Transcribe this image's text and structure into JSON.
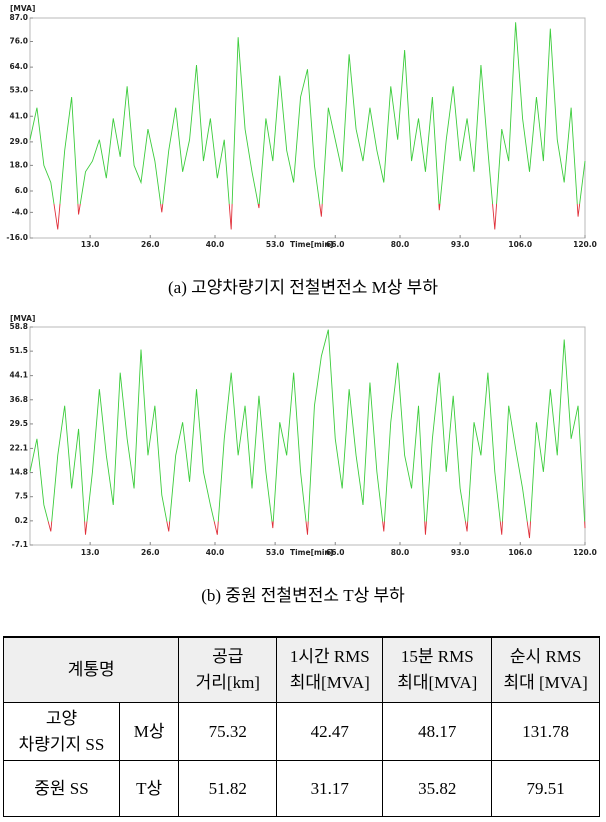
{
  "chart_data": [
    {
      "type": "line",
      "y_label": "[MVA]",
      "x_label": "Time[min]",
      "caption": "(a) 고양차량기지 전철변전소 M상 부하",
      "color": "#3ccc3c",
      "negative_color": "#e0303a",
      "xlim": [
        0,
        120
      ],
      "ylim": [
        -16,
        87
      ],
      "xticks": [
        {
          "value": 13,
          "label": "13.0"
        },
        {
          "value": 26,
          "label": "26.0"
        },
        {
          "value": 40,
          "label": "40.0"
        },
        {
          "value": 53,
          "label": "53.0"
        },
        {
          "value": 66,
          "label": "66.0"
        },
        {
          "value": 80,
          "label": "80.0"
        },
        {
          "value": 93,
          "label": "93.0"
        },
        {
          "value": 106,
          "label": "106.0"
        },
        {
          "value": 120,
          "label": "120.0"
        }
      ],
      "yticks": [
        {
          "value": 87,
          "label": "87.0"
        },
        {
          "value": 76,
          "label": "76.0"
        },
        {
          "value": 64,
          "label": "64.0"
        },
        {
          "value": 53,
          "label": "53.0"
        },
        {
          "value": 41,
          "label": "41.0"
        },
        {
          "value": 29,
          "label": "29.0"
        },
        {
          "value": 18,
          "label": "18.0"
        },
        {
          "value": 6,
          "label": "6.0"
        },
        {
          "value": -4,
          "label": "-4.0"
        },
        {
          "value": -16,
          "label": "-16.0"
        }
      ],
      "x": [
        0,
        1.5,
        3,
        4.5,
        6,
        7.5,
        9,
        10.5,
        12,
        13.5,
        15,
        16.5,
        18,
        19.5,
        21,
        22.5,
        24,
        25.5,
        27,
        28.5,
        30,
        31.5,
        33,
        34.5,
        36,
        37.5,
        39,
        40.5,
        42,
        43.5,
        45,
        46.5,
        48,
        49.5,
        51,
        52.5,
        54,
        55.5,
        57,
        58.5,
        60,
        61.5,
        63,
        64.5,
        66,
        67.5,
        69,
        70.5,
        72,
        73.5,
        75,
        76.5,
        78,
        79.5,
        81,
        82.5,
        84,
        85.5,
        87,
        88.5,
        90,
        91.5,
        93,
        94.5,
        96,
        97.5,
        99,
        100.5,
        102,
        103.5,
        105,
        106.5,
        108,
        109.5,
        111,
        112.5,
        114,
        115.5,
        117,
        118.5,
        120
      ],
      "values": [
        30,
        45,
        18,
        10,
        -12,
        25,
        50,
        -5,
        15,
        20,
        30,
        12,
        40,
        22,
        55,
        18,
        10,
        35,
        20,
        -4,
        25,
        45,
        15,
        30,
        65,
        20,
        40,
        12,
        30,
        -12,
        78,
        35,
        15,
        -2,
        40,
        20,
        60,
        25,
        10,
        50,
        63,
        18,
        -6,
        45,
        30,
        15,
        70,
        35,
        20,
        45,
        25,
        10,
        55,
        30,
        72,
        20,
        40,
        15,
        50,
        -3,
        30,
        55,
        20,
        40,
        15,
        65,
        25,
        -12,
        35,
        20,
        85,
        40,
        15,
        50,
        20,
        82,
        30,
        10,
        45,
        -6,
        20
      ]
    },
    {
      "type": "line",
      "y_label": "[MVA]",
      "x_label": "Time[min]",
      "caption": "(b) 중원 전철변전소 T상 부하",
      "color": "#3ccc3c",
      "negative_color": "#e0303a",
      "xlim": [
        0,
        120
      ],
      "ylim": [
        -7.1,
        58.8
      ],
      "xticks": [
        {
          "value": 13,
          "label": "13.0"
        },
        {
          "value": 26,
          "label": "26.0"
        },
        {
          "value": 40,
          "label": "40.0"
        },
        {
          "value": 53,
          "label": "53.0"
        },
        {
          "value": 66,
          "label": "66.0"
        },
        {
          "value": 80,
          "label": "80.0"
        },
        {
          "value": 93,
          "label": "93.0"
        },
        {
          "value": 106,
          "label": "106.0"
        },
        {
          "value": 120,
          "label": "120.0"
        }
      ],
      "yticks": [
        58.8,
        51.5,
        44.1,
        36.8,
        29.5,
        22.1,
        14.8,
        7.5,
        0.2,
        -7.1
      ],
      "x": [
        0,
        1.5,
        3,
        4.5,
        6,
        7.5,
        9,
        10.5,
        12,
        13.5,
        15,
        16.5,
        18,
        19.5,
        21,
        22.5,
        24,
        25.5,
        27,
        28.5,
        30,
        31.5,
        33,
        34.5,
        36,
        37.5,
        39,
        40.5,
        42,
        43.5,
        45,
        46.5,
        48,
        49.5,
        51,
        52.5,
        54,
        55.5,
        57,
        58.5,
        60,
        61.5,
        63,
        64.5,
        66,
        67.5,
        69,
        70.5,
        72,
        73.5,
        75,
        76.5,
        78,
        79.5,
        81,
        82.5,
        84,
        85.5,
        87,
        88.5,
        90,
        91.5,
        93,
        94.5,
        96,
        97.5,
        99,
        100.5,
        102,
        103.5,
        105,
        106.5,
        108,
        109.5,
        111,
        112.5,
        114,
        115.5,
        117,
        118.5,
        120
      ],
      "values": [
        15,
        25,
        5,
        -3,
        20,
        35,
        10,
        28,
        -4,
        15,
        40,
        20,
        5,
        45,
        25,
        10,
        52,
        20,
        35,
        8,
        -3,
        20,
        30,
        12,
        40,
        15,
        5,
        -4,
        25,
        45,
        20,
        35,
        10,
        38,
        15,
        -2,
        30,
        20,
        45,
        15,
        -4,
        35,
        50,
        58,
        25,
        10,
        40,
        20,
        5,
        42,
        15,
        -3,
        30,
        48,
        20,
        10,
        35,
        -4,
        25,
        45,
        15,
        38,
        10,
        -3,
        30,
        20,
        45,
        15,
        -4,
        35,
        22,
        10,
        -5,
        30,
        15,
        40,
        20,
        55,
        25,
        35,
        -2
      ]
    }
  ],
  "table": {
    "header": [
      "계통명",
      [
        "공급",
        "거리[km]"
      ],
      [
        "1시간 RMS",
        "최대[MVA]"
      ],
      [
        "15분 RMS",
        "최대[MVA]"
      ],
      [
        "순시 RMS",
        "최대 [MVA]"
      ]
    ],
    "rows": [
      [
        [
          "고양",
          "차량기지 SS"
        ],
        "M상",
        "75.32",
        "42.47",
        "48.17",
        "131.78"
      ],
      [
        "중원 SS",
        "T상",
        "51.82",
        "31.17",
        "35.82",
        "79.51"
      ]
    ]
  }
}
